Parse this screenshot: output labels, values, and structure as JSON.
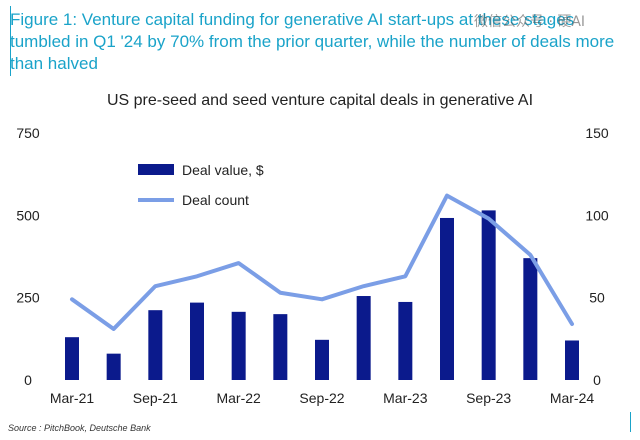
{
  "figure_title": "Figure 1: Venture capital funding for generative AI start-ups at these stages tumbled in Q1 '24 by 70% from the prior quarter, while the number of deals more than halved",
  "watermark": "微信公众号 · 硬AI",
  "source": "Source : PitchBook, Deutsche Bank",
  "colors": {
    "title": "#1aa3c9",
    "bar": "#0b1a8c",
    "line": "#7b9ee6"
  },
  "chart_data": {
    "type": "bar",
    "title": "US pre-seed and seed venture capital deals in generative AI",
    "categories": [
      "Mar-21",
      "Jun-21",
      "Sep-21",
      "Dec-21",
      "Mar-22",
      "Jun-22",
      "Sep-22",
      "Dec-22",
      "Mar-23",
      "Jun-23",
      "Sep-23",
      "Dec-23",
      "Mar-24"
    ],
    "x_tick_labels": [
      "Mar-21",
      "Sep-21",
      "Mar-22",
      "Sep-22",
      "Mar-23",
      "Sep-23",
      "Mar-24"
    ],
    "series": [
      {
        "name": "Deal value, $",
        "type": "bar",
        "axis": "left",
        "values": [
          130,
          80,
          212,
          235,
          207,
          200,
          122,
          255,
          237,
          492,
          515,
          370,
          120
        ]
      },
      {
        "name": "Deal count",
        "type": "line",
        "axis": "right",
        "values": [
          49,
          31,
          57,
          63,
          71,
          53,
          49,
          57,
          63,
          112,
          98,
          76,
          34
        ]
      }
    ],
    "y_left": {
      "ticks": [
        0,
        250,
        500,
        750
      ],
      "ylim": [
        0,
        750
      ]
    },
    "y_right": {
      "ticks": [
        0,
        50,
        100,
        150
      ],
      "ylim": [
        0,
        150
      ]
    },
    "grid": false,
    "legend_position": "top-left"
  }
}
